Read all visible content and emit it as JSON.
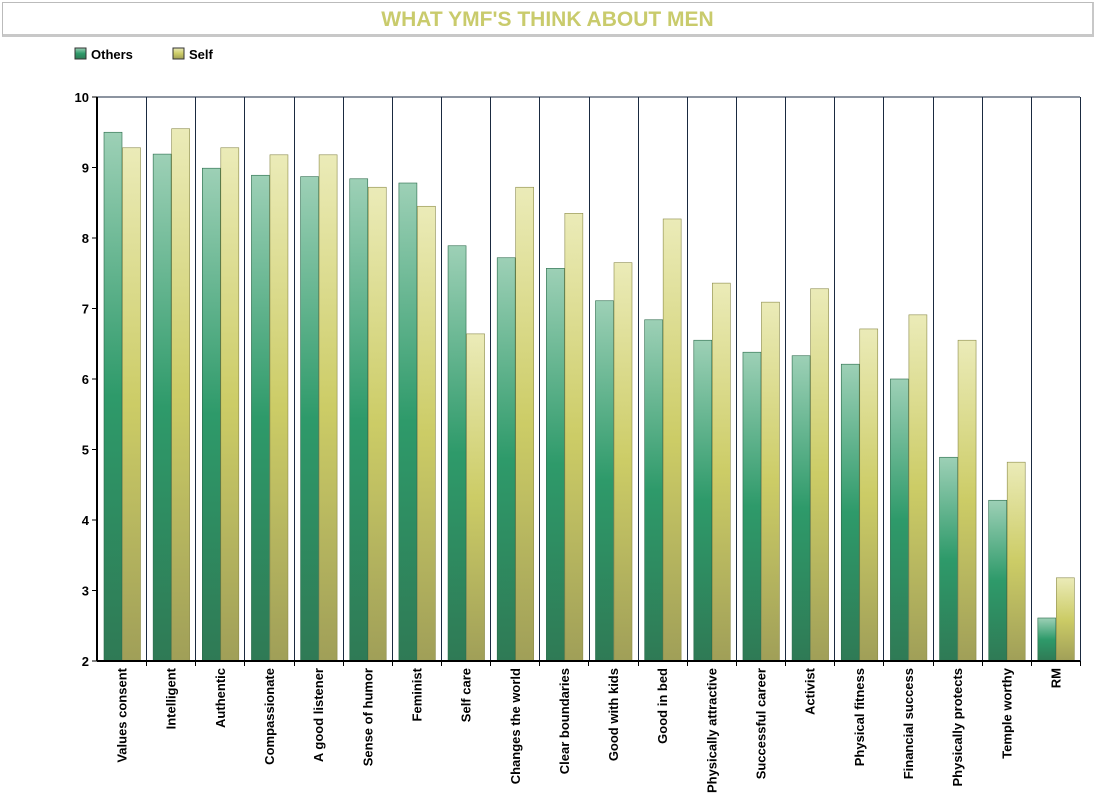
{
  "chart_data": {
    "type": "bar",
    "title": "WHAT YMF'S THINK ABOUT MEN",
    "xlabel": "",
    "ylabel": "",
    "ylim": [
      2,
      10
    ],
    "yticks": [
      2,
      3,
      4,
      5,
      6,
      7,
      8,
      9,
      10
    ],
    "legend_position": "top-left",
    "categories": [
      "Values consent",
      "Intelligent",
      "Authentic",
      "Compassionate",
      "A good listener",
      "Sense of humor",
      "Feminist",
      "Self care",
      "Changes the world",
      "Clear boundaries",
      "Good with kids",
      "Good in bed",
      "Physically attractive",
      "Successful career",
      "Activist",
      "Physical fitness",
      "Financial success",
      "Physically protects",
      "Temple worthy",
      "RM"
    ],
    "series": [
      {
        "name": "Others",
        "color": "#2e9a6a",
        "values": [
          9.5,
          9.19,
          8.99,
          8.89,
          8.87,
          8.84,
          8.78,
          7.89,
          7.72,
          7.57,
          7.11,
          6.84,
          6.55,
          6.38,
          6.33,
          6.21,
          6.0,
          4.89,
          4.28,
          2.61
        ]
      },
      {
        "name": "Self",
        "color": "#cccc66",
        "values": [
          9.28,
          9.55,
          9.28,
          9.18,
          9.18,
          8.72,
          8.45,
          6.64,
          8.72,
          8.35,
          7.65,
          8.27,
          7.36,
          7.09,
          7.28,
          6.71,
          6.91,
          6.55,
          4.82,
          3.18
        ]
      }
    ]
  }
}
